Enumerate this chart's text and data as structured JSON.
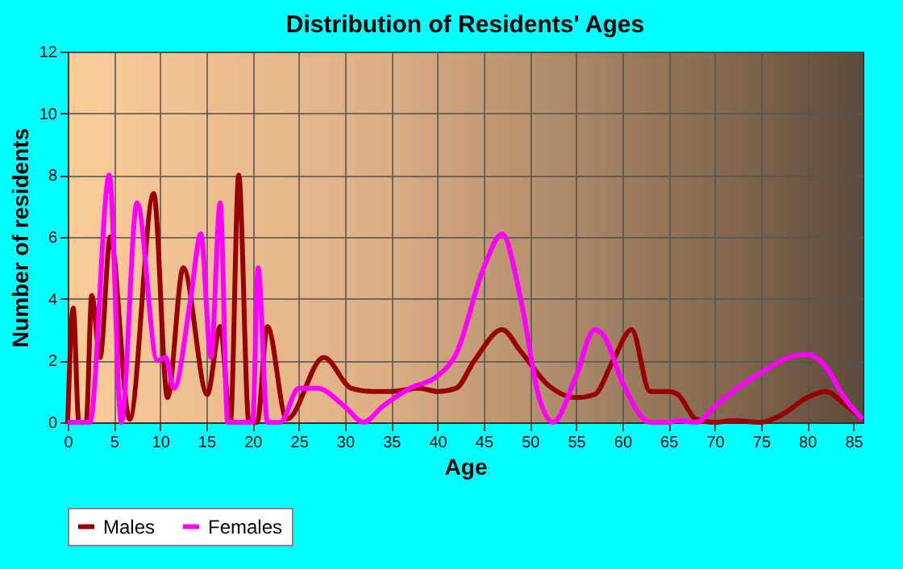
{
  "chart_data": {
    "type": "line",
    "title": "Distribution of Residents' Ages",
    "xlabel": "Age",
    "ylabel": "Number of residents",
    "xlim": [
      0,
      86
    ],
    "ylim": [
      0,
      12
    ],
    "xticks": [
      0,
      5,
      10,
      15,
      20,
      25,
      30,
      35,
      40,
      45,
      50,
      55,
      60,
      65,
      70,
      75,
      80,
      85
    ],
    "yticks": [
      0,
      2,
      4,
      6,
      8,
      10,
      12
    ],
    "grid": true,
    "legend": "bottom",
    "line_style": "solid",
    "marker": "none",
    "series": [
      {
        "name": "Males",
        "color": "#990000",
        "x": [
          0,
          0.6,
          1.2,
          2,
          2.6,
          3.5,
          4.6,
          6.7,
          9.3,
          10.8,
          12.5,
          15.1,
          16.5,
          17.6,
          18.5,
          19.6,
          20.5,
          21.6,
          23.7,
          27.7,
          30.7,
          33,
          35,
          38,
          40,
          42,
          44,
          47,
          49,
          52,
          55,
          57,
          59,
          61,
          63,
          65,
          66,
          68,
          70,
          72,
          75,
          77,
          80,
          82,
          84,
          86
        ],
        "values": [
          0,
          3.7,
          0,
          0,
          4.1,
          2.1,
          6,
          0.1,
          7.4,
          0.8,
          5,
          0.9,
          3.1,
          0,
          8,
          0,
          0,
          3.1,
          0.1,
          2.1,
          1.1,
          1,
          1,
          1.1,
          1,
          1.1,
          2,
          3,
          2.3,
          1.2,
          0.8,
          0.9,
          2,
          3,
          1,
          1,
          0.9,
          0.1,
          0,
          0.05,
          0,
          0.2,
          0.8,
          1,
          0.6,
          0.1
        ]
      },
      {
        "name": "Females",
        "color": "#ff00ff",
        "x": [
          0,
          2.4,
          4.5,
          5.8,
          7.5,
          9.7,
          10.6,
          11.5,
          13.3,
          14.4,
          15.5,
          16.5,
          17.3,
          20,
          20.6,
          21.6,
          23,
          25,
          27,
          30,
          32,
          34,
          37,
          40,
          42,
          45,
          47,
          49,
          51,
          52.5,
          55,
          57,
          58,
          60,
          63,
          65,
          66,
          68,
          70,
          72,
          75,
          78,
          80,
          82,
          84,
          86
        ],
        "values": [
          0,
          0,
          8,
          0,
          7.1,
          2,
          2.1,
          1.1,
          4,
          6.1,
          2.1,
          7.1,
          0,
          0,
          5,
          0,
          0,
          1.1,
          1.1,
          0.5,
          0,
          0.5,
          1.1,
          1.5,
          2.2,
          5,
          6.1,
          4,
          0.8,
          0,
          1.5,
          3,
          2.8,
          1.3,
          0,
          0,
          0.05,
          0,
          0.5,
          1,
          1.6,
          2.1,
          2.2,
          1.8,
          0.8,
          0.1
        ]
      }
    ]
  }
}
